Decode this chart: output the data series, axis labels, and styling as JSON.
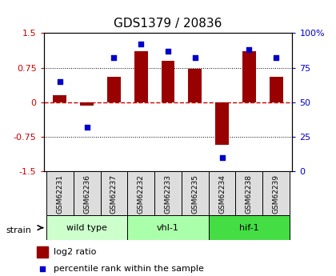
{
  "title": "GDS1379 / 20836",
  "samples": [
    "GSM62231",
    "GSM62236",
    "GSM62237",
    "GSM62232",
    "GSM62233",
    "GSM62235",
    "GSM62234",
    "GSM62238",
    "GSM62239"
  ],
  "log2_ratio": [
    0.15,
    -0.07,
    0.55,
    1.1,
    0.9,
    0.72,
    -0.93,
    1.1,
    0.55
  ],
  "percentile": [
    65,
    32,
    82,
    92,
    87,
    82,
    10,
    88,
    82
  ],
  "groups": [
    {
      "label": "wild type",
      "indices": [
        0,
        1,
        2
      ],
      "color": "#ccffcc"
    },
    {
      "label": "vhl-1",
      "indices": [
        3,
        4,
        5
      ],
      "color": "#aaffaa"
    },
    {
      "label": "hif-1",
      "indices": [
        6,
        7,
        8
      ],
      "color": "#44dd44"
    }
  ],
  "bar_color": "#990000",
  "dot_color": "#0000cc",
  "ylim_left": [
    -1.5,
    1.5
  ],
  "ylim_right": [
    0,
    100
  ],
  "yticks_left": [
    -1.5,
    -0.75,
    0,
    0.75,
    1.5
  ],
  "ytick_labels_left": [
    "-1.5",
    "-0.75",
    "0",
    "0.75",
    "1.5"
  ],
  "yticks_right": [
    0,
    25,
    50,
    75,
    100
  ],
  "ytick_labels_right": [
    "0",
    "25",
    "50",
    "75",
    "100%"
  ],
  "hline_color": "#cc0000",
  "dotted_lines": [
    -0.75,
    0.75
  ],
  "bar_width": 0.5,
  "legend_log2_label": "log2 ratio",
  "legend_pct_label": "percentile rank within the sample"
}
